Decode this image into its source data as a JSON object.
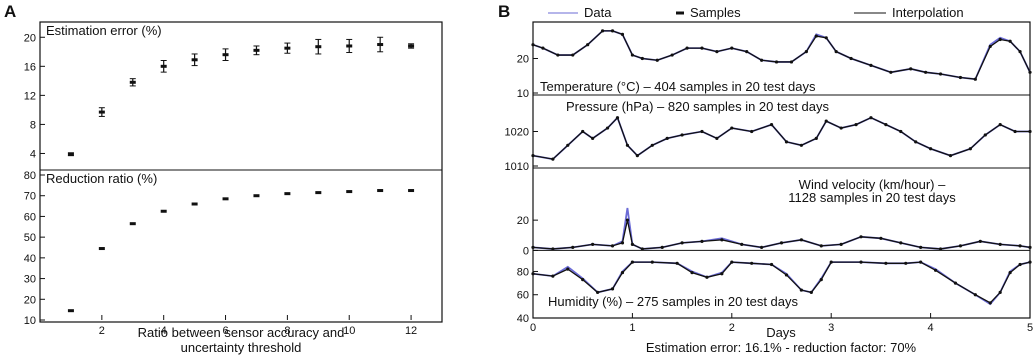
{
  "panel_labels": {
    "a": "A",
    "b": "B"
  },
  "legend": {
    "data": "Data",
    "samples": "Samples",
    "interpolation": "Interpolation"
  },
  "panel_a_xlabel": "Ratio between sensor accuracy and uncertainty threshold",
  "panel_b_xlabel": "Days",
  "footer": "Estimation error: 16.1% - reduction factor: 70%",
  "colors": {
    "data": "#6b6bd6",
    "interpolation": "#111111",
    "errorbar": "#111111"
  },
  "chart_data": [
    {
      "type": "scatter",
      "title": "Estimation error (%)",
      "xlabel": "Ratio between sensor accuracy and uncertainty threshold",
      "ylabel": "",
      "x": [
        1,
        2,
        3,
        4,
        5,
        6,
        7,
        8,
        9,
        10,
        11,
        12
      ],
      "y": [
        3.9,
        9.7,
        13.8,
        16.0,
        16.9,
        17.6,
        18.2,
        18.5,
        18.7,
        18.8,
        19.0,
        18.8
      ],
      "err": [
        0.2,
        0.6,
        0.5,
        0.8,
        0.8,
        0.8,
        0.6,
        0.7,
        1.0,
        0.9,
        1.0,
        0.3
      ],
      "xlim": [
        0,
        13
      ],
      "ylim": [
        2,
        21
      ],
      "yticks": [
        4,
        8,
        12,
        16,
        20
      ],
      "grid": false
    },
    {
      "type": "scatter",
      "title": "Reduction ratio (%)",
      "xlabel": "Ratio between sensor accuracy and uncertainty threshold",
      "ylabel": "",
      "x": [
        1,
        2,
        3,
        4,
        5,
        6,
        7,
        8,
        9,
        10,
        11,
        12
      ],
      "y": [
        14.5,
        44.5,
        56.5,
        62.5,
        66,
        68.5,
        70,
        71,
        71.5,
        72,
        72.5,
        72.5
      ],
      "xlim": [
        0,
        13
      ],
      "ylim": [
        10,
        80
      ],
      "xticks": [
        2,
        4,
        6,
        8,
        10,
        12
      ],
      "yticks": [
        10,
        20,
        30,
        40,
        50,
        60,
        70,
        80
      ],
      "grid": false
    },
    {
      "type": "line",
      "title": "Temperature (°C) – 404 samples in 20 test days",
      "xlabel": "Days",
      "x": [
        0,
        0.1,
        0.25,
        0.4,
        0.55,
        0.7,
        0.8,
        0.9,
        1.0,
        1.1,
        1.25,
        1.4,
        1.55,
        1.7,
        1.85,
        2.0,
        2.15,
        2.3,
        2.45,
        2.6,
        2.75,
        2.85,
        2.95,
        3.05,
        3.2,
        3.4,
        3.6,
        3.8,
        3.95,
        4.1,
        4.3,
        4.45,
        4.6,
        4.7,
        4.8,
        4.9,
        5.0
      ],
      "series": [
        {
          "role": "data",
          "values": [
            24,
            23,
            21,
            21,
            24,
            28,
            28,
            27,
            21,
            20,
            19.5,
            21,
            23,
            23,
            22,
            23,
            22,
            19.5,
            19,
            19,
            22,
            27,
            26,
            22,
            20,
            18,
            16,
            17,
            16,
            15.5,
            14.5,
            14,
            24,
            26,
            25,
            22,
            16
          ]
        },
        {
          "role": "interpolation",
          "values": [
            24,
            23,
            21,
            21,
            24,
            28,
            28,
            27,
            21,
            20,
            19.5,
            21,
            23,
            23,
            22,
            23,
            22,
            19.5,
            19,
            19,
            22,
            26.5,
            26,
            22,
            20,
            18,
            16,
            17,
            16,
            15.5,
            14.5,
            14,
            23.5,
            25.5,
            25,
            22,
            16
          ]
        }
      ],
      "xlim": [
        0,
        5
      ],
      "ylim": [
        10,
        30
      ],
      "yticks": [
        10,
        20
      ],
      "grid": false
    },
    {
      "type": "line",
      "title": "Pressure (hPa) – 820 samples in 20 test days",
      "xlabel": "Days",
      "x": [
        0,
        0.2,
        0.35,
        0.5,
        0.6,
        0.75,
        0.85,
        0.95,
        1.05,
        1.2,
        1.35,
        1.5,
        1.7,
        1.85,
        2.0,
        2.2,
        2.4,
        2.55,
        2.7,
        2.85,
        2.95,
        3.1,
        3.25,
        3.4,
        3.55,
        3.7,
        3.85,
        4.0,
        4.2,
        4.4,
        4.55,
        4.7,
        4.85,
        5.0
      ],
      "series": [
        {
          "role": "data",
          "values": [
            1013,
            1012,
            1016,
            1020,
            1018,
            1021,
            1024,
            1016,
            1013,
            1016,
            1018,
            1019,
            1020,
            1018,
            1021,
            1020,
            1022,
            1017,
            1016,
            1018,
            1023,
            1021,
            1022,
            1024,
            1022,
            1020,
            1017,
            1015,
            1013,
            1015,
            1019,
            1022,
            1020,
            1020
          ]
        },
        {
          "role": "interpolation",
          "values": [
            1013,
            1012,
            1016,
            1020,
            1018,
            1021,
            1024,
            1016,
            1013,
            1016,
            1018,
            1019,
            1020,
            1018,
            1021,
            1020,
            1022,
            1017,
            1016,
            1018,
            1023,
            1021,
            1022,
            1024,
            1022,
            1020,
            1017,
            1015,
            1013,
            1015,
            1019,
            1022,
            1020,
            1020
          ]
        }
      ],
      "xlim": [
        0,
        5
      ],
      "ylim": [
        1010,
        1030
      ],
      "yticks": [
        1010,
        1020
      ],
      "grid": false
    },
    {
      "type": "line",
      "title": "Wind velocity (km/hour) – 1128 samples in 20 test days",
      "xlabel": "Days",
      "x": [
        0,
        0.2,
        0.4,
        0.6,
        0.8,
        0.9,
        0.95,
        1.0,
        1.1,
        1.3,
        1.5,
        1.7,
        1.9,
        2.1,
        2.3,
        2.5,
        2.7,
        2.9,
        3.1,
        3.3,
        3.5,
        3.7,
        3.9,
        4.1,
        4.3,
        4.5,
        4.7,
        4.9,
        5.0
      ],
      "series": [
        {
          "role": "data",
          "values": [
            2,
            1,
            2,
            4,
            3,
            6,
            28,
            4,
            1,
            2,
            5,
            6,
            8,
            4,
            2,
            5,
            7,
            3,
            4,
            9,
            8,
            5,
            2,
            1,
            3,
            6,
            4,
            3,
            2
          ]
        },
        {
          "role": "interpolation",
          "values": [
            2,
            1,
            2,
            4,
            3,
            5,
            20,
            4,
            1,
            2,
            5,
            6,
            7,
            4,
            2,
            5,
            7,
            3,
            4,
            9,
            8,
            5,
            2,
            1,
            3,
            6,
            4,
            3,
            2
          ]
        }
      ],
      "xlim": [
        0,
        5
      ],
      "ylim": [
        -5,
        30
      ],
      "yticks": [
        0,
        20
      ],
      "grid": false
    },
    {
      "type": "line",
      "title": "Humidity (%) – 275 samples in 20 test days",
      "xlabel": "Days",
      "x": [
        0,
        0.2,
        0.35,
        0.5,
        0.65,
        0.8,
        0.9,
        1.0,
        1.2,
        1.45,
        1.6,
        1.75,
        1.9,
        2.0,
        2.2,
        2.4,
        2.55,
        2.7,
        2.8,
        2.9,
        3.0,
        3.3,
        3.55,
        3.75,
        3.9,
        4.05,
        4.25,
        4.45,
        4.6,
        4.7,
        4.8,
        4.9,
        5.0
      ],
      "series": [
        {
          "role": "data",
          "values": [
            78,
            76,
            84,
            74,
            62,
            65,
            80,
            88,
            88,
            87,
            80,
            75,
            79,
            88,
            87,
            86,
            78,
            64,
            62,
            74,
            88,
            88,
            87,
            87,
            88,
            82,
            70,
            60,
            52,
            62,
            80,
            86,
            88
          ]
        },
        {
          "role": "interpolation",
          "values": [
            78,
            76,
            82,
            73,
            62,
            65,
            79,
            88,
            88,
            87,
            79,
            75,
            78,
            88,
            87,
            86,
            77,
            64,
            62,
            73,
            88,
            88,
            87,
            87,
            88,
            81,
            70,
            60,
            53,
            62,
            79,
            86,
            88
          ]
        }
      ],
      "xlim": [
        0,
        5
      ],
      "ylim": [
        40,
        95
      ],
      "yticks": [
        40,
        60,
        80
      ],
      "xticks": [
        0,
        1,
        2,
        3,
        4,
        5
      ],
      "grid": false
    }
  ]
}
